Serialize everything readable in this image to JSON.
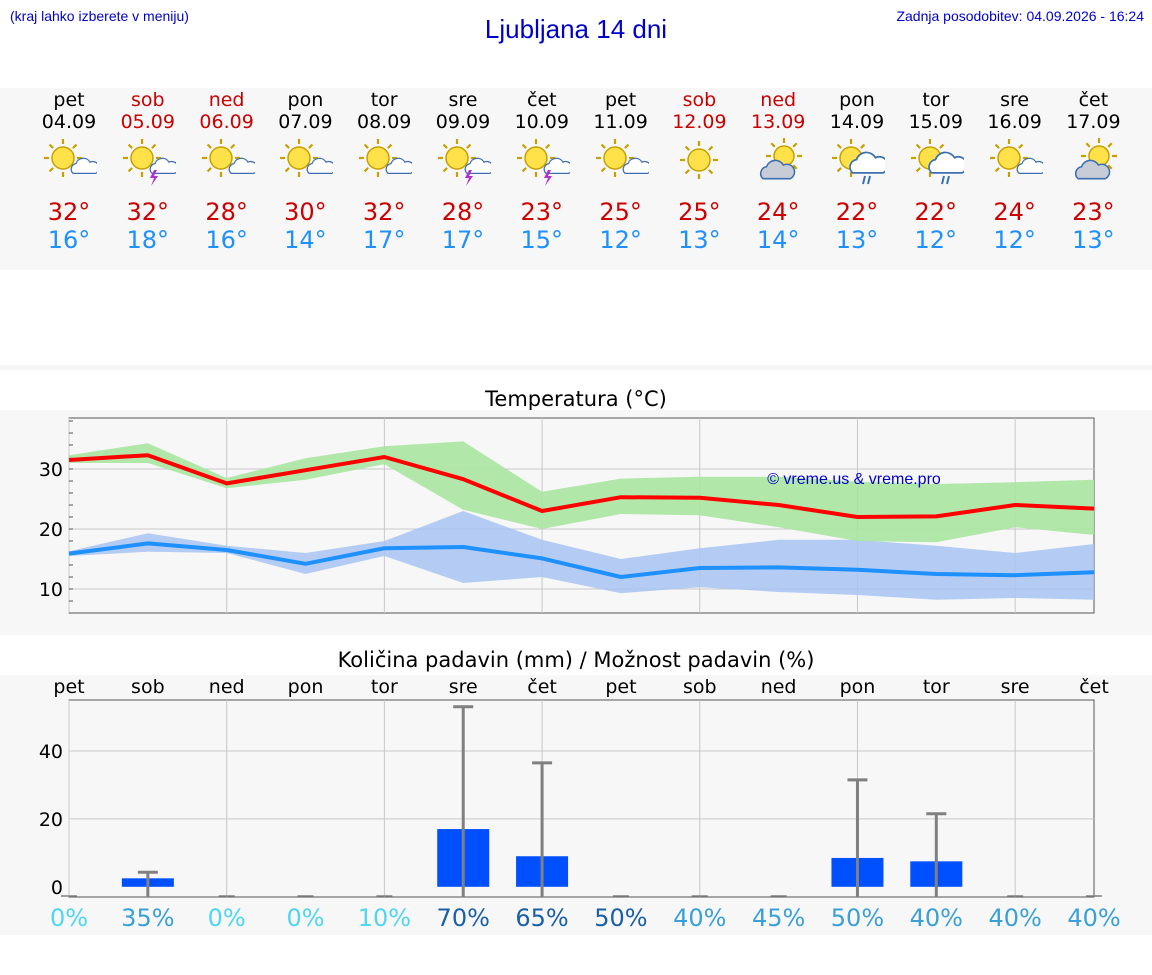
{
  "header": {
    "hint": "(kraj lahko izberete v meniju)",
    "title": "Ljubljana 14 dni",
    "updated": "Zadnja posodobitev: 04.09.2026 - 16:24"
  },
  "days": [
    {
      "name": "pet",
      "date": "04.09",
      "weekend": false,
      "icon": "sun-cloud-icon",
      "tmax": "32°",
      "tmin": "16°"
    },
    {
      "name": "sob",
      "date": "05.09",
      "weekend": true,
      "icon": "sun-cloud-lightning-icon",
      "tmax": "32°",
      "tmin": "18°"
    },
    {
      "name": "ned",
      "date": "06.09",
      "weekend": true,
      "icon": "sun-cloud-icon",
      "tmax": "28°",
      "tmin": "16°"
    },
    {
      "name": "pon",
      "date": "07.09",
      "weekend": false,
      "icon": "sun-cloud-icon",
      "tmax": "30°",
      "tmin": "14°"
    },
    {
      "name": "tor",
      "date": "08.09",
      "weekend": false,
      "icon": "sun-cloud-icon",
      "tmax": "32°",
      "tmin": "17°"
    },
    {
      "name": "sre",
      "date": "09.09",
      "weekend": false,
      "icon": "sun-cloud-lightning-icon",
      "tmax": "28°",
      "tmin": "17°"
    },
    {
      "name": "čet",
      "date": "10.09",
      "weekend": false,
      "icon": "sun-cloud-lightning-icon",
      "tmax": "23°",
      "tmin": "15°"
    },
    {
      "name": "pet",
      "date": "11.09",
      "weekend": false,
      "icon": "sun-cloud-icon",
      "tmax": "25°",
      "tmin": "12°"
    },
    {
      "name": "sob",
      "date": "12.09",
      "weekend": true,
      "icon": "sun-icon",
      "tmax": "25°",
      "tmin": "13°"
    },
    {
      "name": "ned",
      "date": "13.09",
      "weekend": true,
      "icon": "cloud-sun-icon",
      "tmax": "24°",
      "tmin": "14°"
    },
    {
      "name": "pon",
      "date": "14.09",
      "weekend": false,
      "icon": "sun-cloud-rain-icon",
      "tmax": "22°",
      "tmin": "13°"
    },
    {
      "name": "tor",
      "date": "15.09",
      "weekend": false,
      "icon": "sun-cloud-rain-icon",
      "tmax": "22°",
      "tmin": "12°"
    },
    {
      "name": "sre",
      "date": "16.09",
      "weekend": false,
      "icon": "sun-cloud-icon",
      "tmax": "24°",
      "tmin": "12°"
    },
    {
      "name": "čet",
      "date": "17.09",
      "weekend": false,
      "icon": "cloud-sun-icon",
      "tmax": "23°",
      "tmin": "13°"
    }
  ],
  "colors": {
    "max_line": "#ff0000",
    "max_band": "#a8e6a0",
    "min_line": "#1e90ff",
    "min_band": "#a8c4f2",
    "bar": "#0050ff",
    "error_bar": "#808080",
    "weekend_text": "#cc0000",
    "link": "#0000cc"
  },
  "chart_data": [
    {
      "type": "line",
      "title": "Temperatura (°C)",
      "watermark": "© vreme.us & vreme.pro",
      "x": [
        "04.09",
        "05.09",
        "06.09",
        "07.09",
        "08.09",
        "09.09",
        "10.09",
        "11.09",
        "12.09",
        "13.09",
        "14.09",
        "15.09",
        "16.09",
        "17.09"
      ],
      "ylim": [
        6,
        38.5
      ],
      "yticks": [
        10,
        20,
        30
      ],
      "grid": true,
      "series": [
        {
          "key": "max",
          "values": [
            31.5,
            32.3,
            27.6,
            29.8,
            32.0,
            28.3,
            23.0,
            25.3,
            25.2,
            24.0,
            22.0,
            22.1,
            24.0,
            23.4
          ],
          "band_low": [
            31.0,
            31.0,
            26.8,
            28.2,
            30.8,
            23.2,
            20.0,
            22.5,
            22.3,
            20.3,
            18.0,
            17.8,
            20.3,
            19.0
          ],
          "band_high": [
            32.3,
            34.3,
            28.5,
            31.8,
            33.8,
            34.6,
            26.2,
            28.4,
            28.7,
            28.7,
            27.9,
            27.5,
            27.8,
            28.2
          ]
        },
        {
          "key": "min",
          "values": [
            15.9,
            17.6,
            16.5,
            14.2,
            16.8,
            17.0,
            15.1,
            12.0,
            13.5,
            13.6,
            13.2,
            12.5,
            12.3,
            12.8
          ],
          "band_low": [
            15.5,
            16.2,
            16.0,
            12.5,
            15.5,
            11.0,
            12.0,
            9.3,
            10.3,
            9.5,
            9.0,
            8.2,
            8.5,
            8.2
          ],
          "band_high": [
            16.3,
            19.3,
            17.2,
            16.0,
            18.0,
            23.0,
            18.2,
            15.0,
            16.8,
            18.2,
            18.2,
            17.2,
            16.0,
            17.5
          ]
        }
      ]
    },
    {
      "type": "bar",
      "title": "Količina padavin (mm) / Možnost padavin (%)",
      "categories": [
        "pet",
        "sob",
        "ned",
        "pon",
        "tor",
        "sre",
        "čet",
        "pet",
        "sob",
        "ned",
        "pon",
        "tor",
        "sre",
        "čet"
      ],
      "ylim": [
        -3,
        55
      ],
      "yticks": [
        0,
        20,
        40
      ],
      "grid": true,
      "values": [
        0,
        2.5,
        0,
        0,
        0,
        17.0,
        9.0,
        0,
        0,
        0,
        8.5,
        7.5,
        0,
        0
      ],
      "error_high": [
        0,
        4.3,
        0,
        0,
        0,
        53.0,
        36.5,
        0,
        0,
        0,
        31.5,
        21.5,
        0,
        0
      ],
      "chance": [
        "0%",
        "35%",
        "0%",
        "0%",
        "10%",
        "70%",
        "65%",
        "50%",
        "40%",
        "45%",
        "50%",
        "40%",
        "40%",
        "40%"
      ],
      "chance_colors": [
        "#4fd6f0",
        "#3aa0d8",
        "#4fd6f0",
        "#4fd6f0",
        "#4fd6f0",
        "#1a5fa8",
        "#1a5fa8",
        "#1a5fa8",
        "#3aa0d8",
        "#3aa0d8",
        "#3aa0d8",
        "#3aa0d8",
        "#3aa0d8",
        "#3aa0d8"
      ]
    }
  ]
}
